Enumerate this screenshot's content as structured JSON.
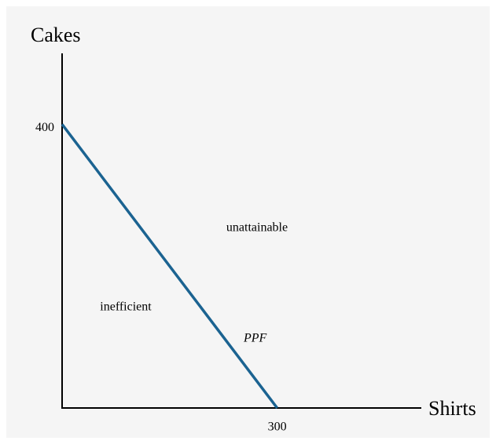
{
  "chart_data": {
    "type": "line",
    "x_label": "Shirts",
    "y_label": "Cakes",
    "x": [
      0,
      300
    ],
    "series": [
      {
        "name": "PPF",
        "color": "#1b6391",
        "values": [
          400,
          0
        ]
      }
    ],
    "xlim": [
      0,
      500
    ],
    "ylim": [
      0,
      500
    ],
    "xticks": [
      300
    ],
    "yticks": [
      400
    ],
    "annotations": [
      "unattainable",
      "inefficient"
    ],
    "grid": false
  }
}
